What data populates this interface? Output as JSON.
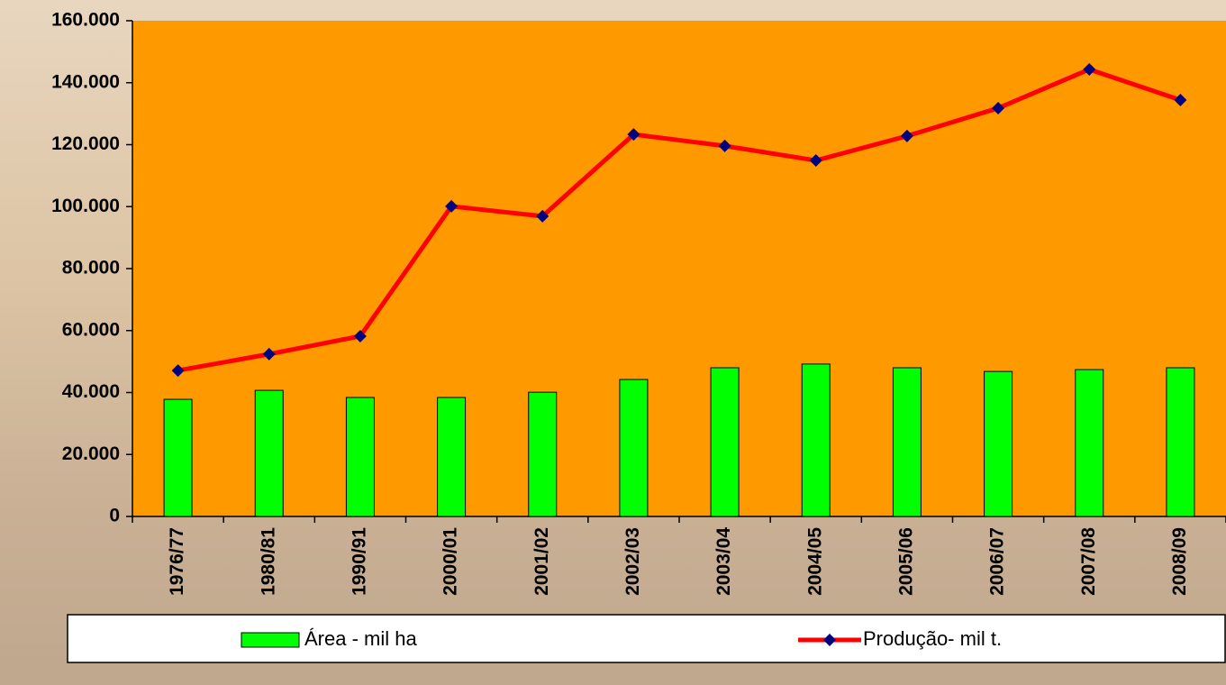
{
  "chart_data": {
    "type": "bar",
    "categories": [
      "1976/77",
      "1980/81",
      "1990/91",
      "2000/01",
      "2001/02",
      "2002/03",
      "2003/04",
      "2004/05",
      "2005/06",
      "2006/07",
      "2007/08",
      "2008/09"
    ],
    "series": [
      {
        "name": "Área - mil ha",
        "type": "bar",
        "color": "#00ff00",
        "values": [
          37800,
          40700,
          38400,
          38400,
          40100,
          44200,
          48000,
          49200,
          48000,
          46800,
          47400,
          48000
        ]
      },
      {
        "name": "Produção- mil t.",
        "type": "line",
        "color": "#ff0000",
        "marker_color": "#000080",
        "values": [
          47100,
          52400,
          58200,
          100100,
          96900,
          123300,
          119600,
          114900,
          122800,
          131800,
          144300,
          134400
        ]
      }
    ],
    "ylim": [
      0,
      160000
    ],
    "yticks": [
      0,
      {
        "value": 20000,
        "label": "20.000"
      },
      {
        "value": 40000,
        "label": "40.000"
      },
      {
        "value": 60000,
        "label": "60.000"
      },
      {
        "value": 80000,
        "label": "80.000"
      },
      {
        "value": 100000,
        "label": "100.000"
      },
      {
        "value": 120000,
        "label": "120.000"
      },
      {
        "value": 140000,
        "label": "140.000"
      },
      {
        "value": 160000,
        "label": "160.000"
      }
    ],
    "plot_background": "#ff9900",
    "legend": "bottom"
  }
}
